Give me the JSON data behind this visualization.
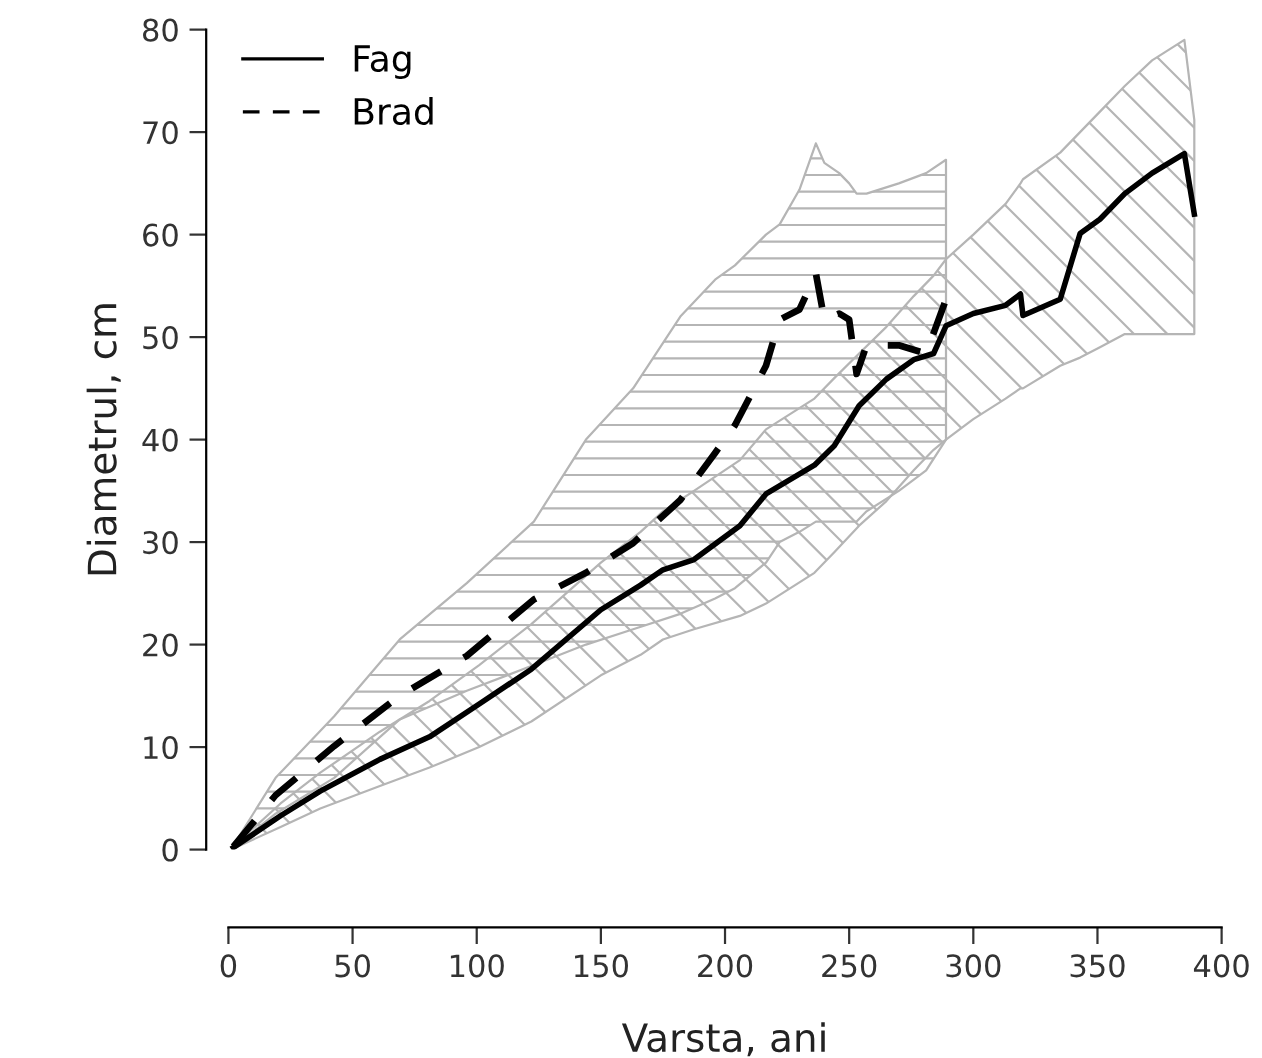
{
  "chart_data": {
    "type": "line",
    "xlabel": "Varsta, ani",
    "ylabel": "Diametrul, cm",
    "xlim": [
      0,
      400
    ],
    "xticks": [
      0,
      50,
      100,
      150,
      200,
      250,
      300,
      350,
      400
    ],
    "ylim": [
      0,
      80
    ],
    "yticks": [
      0,
      10,
      20,
      30,
      40,
      50,
      60,
      70,
      80
    ],
    "grid": false,
    "legend": "top left",
    "marker": "none",
    "series": [
      {
        "name": "Fag",
        "color": "#000000",
        "line_style": "solid",
        "x": [
          2,
          21,
          37,
          61,
          81,
          101,
          122,
          150,
          166,
          175,
          187.5,
          206,
          216.5,
          236,
          244,
          254,
          265,
          276,
          284,
          289,
          300,
          313,
          319,
          320,
          335,
          343,
          351,
          361,
          372,
          385,
          389
        ],
        "values": [
          0.2,
          3.3,
          5.7,
          8.8,
          11,
          14.2,
          17.6,
          23.4,
          25.8,
          27.3,
          28.3,
          31.6,
          34.7,
          37.5,
          39.4,
          43.3,
          45.9,
          47.8,
          48.4,
          51.1,
          52.3,
          53.1,
          54.2,
          52.1,
          53.7,
          60.1,
          61.5,
          64,
          66,
          67.9,
          62
        ],
        "lower": [
          0.1,
          2.2,
          4,
          6.2,
          8,
          10,
          12.5,
          17,
          19,
          20.5,
          21.5,
          22.8,
          24,
          27,
          29,
          31.6,
          34,
          37,
          39,
          40,
          42,
          44,
          45,
          45,
          47.2,
          48,
          49,
          50.3,
          50.3,
          50.3,
          50.3
        ],
        "upper": [
          0.3,
          4.5,
          7.5,
          11.5,
          14.5,
          18,
          22,
          28,
          31,
          33,
          35,
          38,
          41,
          44,
          46,
          48.4,
          51,
          54,
          56,
          57.6,
          60,
          63,
          65,
          65.4,
          68,
          70,
          72,
          74.5,
          77,
          79,
          71.2
        ]
      },
      {
        "name": "Brad",
        "color": "#000000",
        "line_style": "dashed",
        "x": [
          2,
          19,
          42.6,
          69,
          96,
          123,
          144,
          163,
          182,
          196,
          204,
          216.5,
          222,
          230,
          236.6,
          240,
          246,
          250,
          253,
          257,
          270,
          281,
          289
        ],
        "values": [
          0.3,
          5.3,
          10.1,
          15,
          18.9,
          24.4,
          27,
          29.9,
          34.1,
          38.7,
          41.4,
          47.2,
          51.7,
          52.7,
          56.2,
          51.7,
          52.3,
          51.7,
          46.4,
          49.2,
          49.2,
          48.4,
          53.7
        ],
        "lower": [
          0.2,
          3.5,
          7,
          12.7,
          15.5,
          18,
          20,
          21.5,
          23,
          24.5,
          25.5,
          28,
          30,
          31,
          32,
          32,
          32,
          32,
          32,
          33,
          35,
          37,
          40
        ],
        "upper": [
          0.4,
          7,
          13,
          20.5,
          26,
          32,
          40,
          45,
          52,
          55.6,
          57,
          60,
          61,
          64.4,
          68.9,
          67,
          66,
          65,
          64,
          64,
          65,
          66,
          67.3
        ]
      }
    ]
  }
}
